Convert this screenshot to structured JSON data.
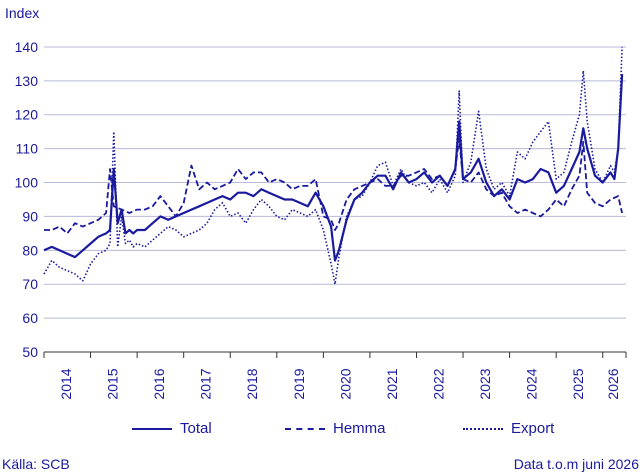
{
  "ylabel": "Index",
  "source": "Källa: SCB",
  "note": "Data t.o.m juni 2026",
  "colors": {
    "primary": "#1a1a9e",
    "grid": "#b9b9d9",
    "axis": "#333333"
  },
  "legend": [
    {
      "name": "Total",
      "style": "solid"
    },
    {
      "name": "Hemma",
      "style": "dashed"
    },
    {
      "name": "Export",
      "style": "dotted"
    }
  ],
  "chart_data": {
    "type": "line",
    "xlabel": "",
    "ylabel": "Index",
    "ylim": [
      50,
      145
    ],
    "yticks": [
      50,
      60,
      70,
      80,
      90,
      100,
      110,
      120,
      130,
      140
    ],
    "xlim": [
      "2014-01",
      "2026-06"
    ],
    "xticks": [
      "2014",
      "2015",
      "2016",
      "2017",
      "2018",
      "2019",
      "2020",
      "2021",
      "2022",
      "2023",
      "2024",
      "2025",
      "2026"
    ],
    "grid": true,
    "legend_position": "bottom",
    "series": [
      {
        "name": "Total",
        "style": "solid",
        "points": [
          [
            "2014-01",
            80
          ],
          [
            "2014-03",
            81
          ],
          [
            "2014-05",
            80
          ],
          [
            "2014-07",
            79
          ],
          [
            "2014-09",
            78
          ],
          [
            "2014-11",
            80
          ],
          [
            "2015-01",
            82
          ],
          [
            "2015-03",
            84
          ],
          [
            "2015-05",
            85
          ],
          [
            "2015-06",
            86
          ],
          [
            "2015-07",
            104
          ],
          [
            "2015-08",
            88
          ],
          [
            "2015-09",
            92
          ],
          [
            "2015-10",
            85
          ],
          [
            "2015-11",
            86
          ],
          [
            "2015-12",
            85
          ],
          [
            "2016-01",
            86
          ],
          [
            "2016-03",
            86
          ],
          [
            "2016-05",
            88
          ],
          [
            "2016-07",
            90
          ],
          [
            "2016-09",
            89
          ],
          [
            "2016-11",
            90
          ],
          [
            "2017-01",
            91
          ],
          [
            "2017-03",
            92
          ],
          [
            "2017-05",
            93
          ],
          [
            "2017-07",
            94
          ],
          [
            "2017-09",
            95
          ],
          [
            "2017-11",
            96
          ],
          [
            "2018-01",
            95
          ],
          [
            "2018-03",
            97
          ],
          [
            "2018-05",
            97
          ],
          [
            "2018-07",
            96
          ],
          [
            "2018-09",
            98
          ],
          [
            "2018-11",
            97
          ],
          [
            "2019-01",
            96
          ],
          [
            "2019-03",
            95
          ],
          [
            "2019-05",
            95
          ],
          [
            "2019-07",
            94
          ],
          [
            "2019-09",
            93
          ],
          [
            "2019-11",
            97
          ],
          [
            "2020-01",
            93
          ],
          [
            "2020-03",
            87
          ],
          [
            "2020-04",
            77
          ],
          [
            "2020-05",
            80
          ],
          [
            "2020-07",
            89
          ],
          [
            "2020-09",
            95
          ],
          [
            "2020-11",
            97
          ],
          [
            "2021-01",
            100
          ],
          [
            "2021-03",
            102
          ],
          [
            "2021-05",
            102
          ],
          [
            "2021-07",
            98
          ],
          [
            "2021-09",
            103
          ],
          [
            "2021-11",
            100
          ],
          [
            "2022-01",
            101
          ],
          [
            "2022-03",
            103
          ],
          [
            "2022-05",
            100
          ],
          [
            "2022-07",
            102
          ],
          [
            "2022-09",
            99
          ],
          [
            "2022-11",
            104
          ],
          [
            "2022-12",
            118
          ],
          [
            "2023-01",
            101
          ],
          [
            "2023-03",
            103
          ],
          [
            "2023-05",
            107
          ],
          [
            "2023-07",
            100
          ],
          [
            "2023-09",
            96
          ],
          [
            "2023-11",
            98
          ],
          [
            "2024-01",
            95
          ],
          [
            "2024-03",
            101
          ],
          [
            "2024-05",
            100
          ],
          [
            "2024-07",
            101
          ],
          [
            "2024-09",
            104
          ],
          [
            "2024-11",
            103
          ],
          [
            "2025-01",
            97
          ],
          [
            "2025-03",
            99
          ],
          [
            "2025-05",
            104
          ],
          [
            "2025-07",
            109
          ],
          [
            "2025-08",
            116
          ],
          [
            "2025-09",
            110
          ],
          [
            "2025-11",
            102
          ],
          [
            "2026-01",
            100
          ],
          [
            "2026-03",
            103
          ],
          [
            "2026-04",
            101
          ],
          [
            "2026-05",
            110
          ],
          [
            "2026-06",
            132
          ]
        ]
      },
      {
        "name": "Hemma",
        "style": "dashed",
        "points": [
          [
            "2014-01",
            86
          ],
          [
            "2014-03",
            86
          ],
          [
            "2014-05",
            87
          ],
          [
            "2014-07",
            85
          ],
          [
            "2014-09",
            88
          ],
          [
            "2014-11",
            87
          ],
          [
            "2015-01",
            88
          ],
          [
            "2015-03",
            89
          ],
          [
            "2015-05",
            91
          ],
          [
            "2015-06",
            104
          ],
          [
            "2015-07",
            93
          ],
          [
            "2015-09",
            92
          ],
          [
            "2015-11",
            91
          ],
          [
            "2016-01",
            92
          ],
          [
            "2016-03",
            92
          ],
          [
            "2016-05",
            93
          ],
          [
            "2016-07",
            96
          ],
          [
            "2016-09",
            93
          ],
          [
            "2016-11",
            90
          ],
          [
            "2017-01",
            94
          ],
          [
            "2017-03",
            105
          ],
          [
            "2017-05",
            98
          ],
          [
            "2017-07",
            100
          ],
          [
            "2017-09",
            98
          ],
          [
            "2017-11",
            99
          ],
          [
            "2018-01",
            100
          ],
          [
            "2018-03",
            104
          ],
          [
            "2018-05",
            101
          ],
          [
            "2018-07",
            103
          ],
          [
            "2018-09",
            103
          ],
          [
            "2018-11",
            100
          ],
          [
            "2019-01",
            101
          ],
          [
            "2019-03",
            100
          ],
          [
            "2019-05",
            98
          ],
          [
            "2019-07",
            99
          ],
          [
            "2019-09",
            99
          ],
          [
            "2019-11",
            101
          ],
          [
            "2020-01",
            90
          ],
          [
            "2020-03",
            89
          ],
          [
            "2020-04",
            86
          ],
          [
            "2020-05",
            88
          ],
          [
            "2020-07",
            95
          ],
          [
            "2020-09",
            98
          ],
          [
            "2020-11",
            99
          ],
          [
            "2021-01",
            100
          ],
          [
            "2021-03",
            101
          ],
          [
            "2021-05",
            99
          ],
          [
            "2021-07",
            99
          ],
          [
            "2021-09",
            102
          ],
          [
            "2021-11",
            102
          ],
          [
            "2022-01",
            103
          ],
          [
            "2022-03",
            104
          ],
          [
            "2022-05",
            101
          ],
          [
            "2022-07",
            102
          ],
          [
            "2022-09",
            99
          ],
          [
            "2022-11",
            104
          ],
          [
            "2022-12",
            113
          ],
          [
            "2023-01",
            101
          ],
          [
            "2023-03",
            100
          ],
          [
            "2023-05",
            103
          ],
          [
            "2023-07",
            98
          ],
          [
            "2023-09",
            96
          ],
          [
            "2023-11",
            97
          ],
          [
            "2024-01",
            93
          ],
          [
            "2024-03",
            91
          ],
          [
            "2024-05",
            92
          ],
          [
            "2024-07",
            91
          ],
          [
            "2024-09",
            90
          ],
          [
            "2024-11",
            92
          ],
          [
            "2025-01",
            95
          ],
          [
            "2025-03",
            93
          ],
          [
            "2025-05",
            98
          ],
          [
            "2025-07",
            102
          ],
          [
            "2025-08",
            112
          ],
          [
            "2025-09",
            97
          ],
          [
            "2025-11",
            94
          ],
          [
            "2026-01",
            93
          ],
          [
            "2026-03",
            95
          ],
          [
            "2026-05",
            96
          ],
          [
            "2026-06",
            91
          ]
        ]
      },
      {
        "name": "Export",
        "style": "dotted",
        "points": [
          [
            "2014-01",
            73
          ],
          [
            "2014-03",
            77
          ],
          [
            "2014-05",
            75
          ],
          [
            "2014-07",
            74
          ],
          [
            "2014-09",
            73
          ],
          [
            "2014-11",
            71
          ],
          [
            "2015-01",
            76
          ],
          [
            "2015-03",
            79
          ],
          [
            "2015-05",
            80
          ],
          [
            "2015-06",
            82
          ],
          [
            "2015-07",
            115
          ],
          [
            "2015-08",
            81
          ],
          [
            "2015-09",
            90
          ],
          [
            "2015-10",
            82
          ],
          [
            "2015-11",
            83
          ],
          [
            "2015-12",
            81
          ],
          [
            "2016-01",
            82
          ],
          [
            "2016-03",
            81
          ],
          [
            "2016-05",
            83
          ],
          [
            "2016-07",
            85
          ],
          [
            "2016-09",
            87
          ],
          [
            "2016-11",
            86
          ],
          [
            "2017-01",
            84
          ],
          [
            "2017-03",
            85
          ],
          [
            "2017-05",
            86
          ],
          [
            "2017-07",
            88
          ],
          [
            "2017-09",
            92
          ],
          [
            "2017-11",
            94
          ],
          [
            "2018-01",
            90
          ],
          [
            "2018-03",
            91
          ],
          [
            "2018-05",
            88
          ],
          [
            "2018-07",
            92
          ],
          [
            "2018-09",
            95
          ],
          [
            "2018-11",
            93
          ],
          [
            "2019-01",
            90
          ],
          [
            "2019-03",
            89
          ],
          [
            "2019-05",
            92
          ],
          [
            "2019-07",
            91
          ],
          [
            "2019-09",
            90
          ],
          [
            "2019-11",
            92
          ],
          [
            "2020-01",
            86
          ],
          [
            "2020-03",
            76
          ],
          [
            "2020-04",
            70
          ],
          [
            "2020-05",
            78
          ],
          [
            "2020-07",
            90
          ],
          [
            "2020-09",
            95
          ],
          [
            "2020-11",
            96
          ],
          [
            "2021-01",
            100
          ],
          [
            "2021-03",
            105
          ],
          [
            "2021-05",
            106
          ],
          [
            "2021-07",
            99
          ],
          [
            "2021-09",
            104
          ],
          [
            "2021-11",
            100
          ],
          [
            "2022-01",
            99
          ],
          [
            "2022-03",
            100
          ],
          [
            "2022-05",
            97
          ],
          [
            "2022-07",
            101
          ],
          [
            "2022-09",
            97
          ],
          [
            "2022-11",
            102
          ],
          [
            "2022-12",
            127
          ],
          [
            "2023-01",
            100
          ],
          [
            "2023-03",
            106
          ],
          [
            "2023-05",
            121
          ],
          [
            "2023-07",
            104
          ],
          [
            "2023-09",
            98
          ],
          [
            "2023-11",
            100
          ],
          [
            "2024-01",
            96
          ],
          [
            "2024-03",
            109
          ],
          [
            "2024-05",
            107
          ],
          [
            "2024-07",
            112
          ],
          [
            "2024-09",
            115
          ],
          [
            "2024-11",
            118
          ],
          [
            "2025-01",
            101
          ],
          [
            "2025-03",
            103
          ],
          [
            "2025-05",
            112
          ],
          [
            "2025-07",
            120
          ],
          [
            "2025-08",
            133
          ],
          [
            "2025-09",
            118
          ],
          [
            "2025-11",
            104
          ],
          [
            "2026-01",
            100
          ],
          [
            "2026-03",
            105
          ],
          [
            "2026-04",
            103
          ],
          [
            "2026-05",
            110
          ],
          [
            "2026-06",
            140
          ]
        ]
      }
    ]
  }
}
